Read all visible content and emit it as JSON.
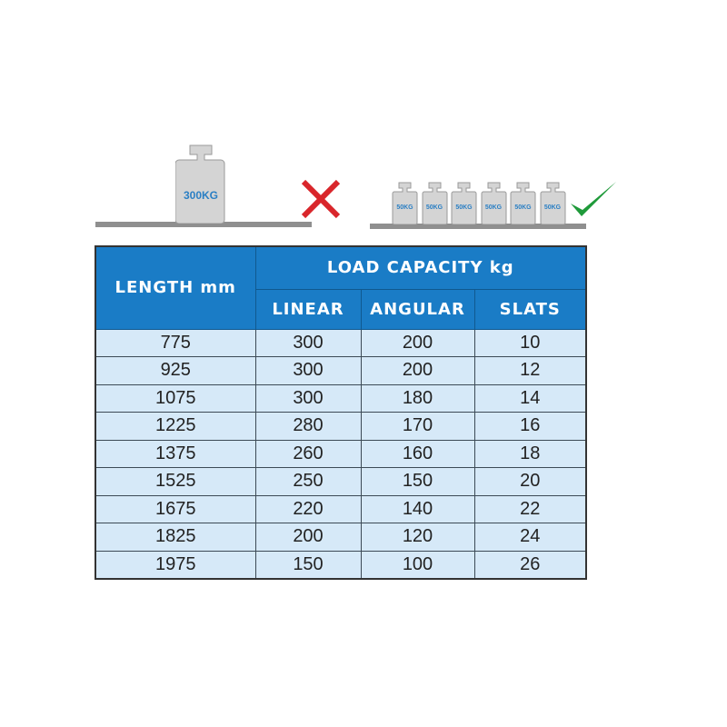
{
  "illustration": {
    "big_weight_label": "300KG",
    "small_weight_labels": [
      "50KG",
      "50KG",
      "50KG",
      "50KG",
      "50KG",
      "50KG"
    ],
    "wrong_icon": "red-x-icon",
    "right_icon": "green-checkmark-icon",
    "colors": {
      "wrong": "#d9262b",
      "right": "#1f9a3a",
      "weight": "#d4d4d4",
      "label": "#2a7fc4"
    }
  },
  "table": {
    "header_length": "LENGTH mm",
    "header_group": "LOAD CAPACITY kg",
    "sub_headers": [
      "LINEAR",
      "ANGULAR",
      "SLATS"
    ],
    "rows": [
      [
        "775",
        "300",
        "200",
        "10"
      ],
      [
        "925",
        "300",
        "200",
        "12"
      ],
      [
        "1075",
        "300",
        "180",
        "14"
      ],
      [
        "1225",
        "280",
        "170",
        "16"
      ],
      [
        "1375",
        "260",
        "160",
        "18"
      ],
      [
        "1525",
        "250",
        "150",
        "20"
      ],
      [
        "1675",
        "220",
        "140",
        "22"
      ],
      [
        "1825",
        "200",
        "120",
        "24"
      ],
      [
        "1975",
        "150",
        "100",
        "26"
      ]
    ],
    "colors": {
      "header": "#1a7cc6",
      "cell": "#d6e9f8"
    }
  }
}
